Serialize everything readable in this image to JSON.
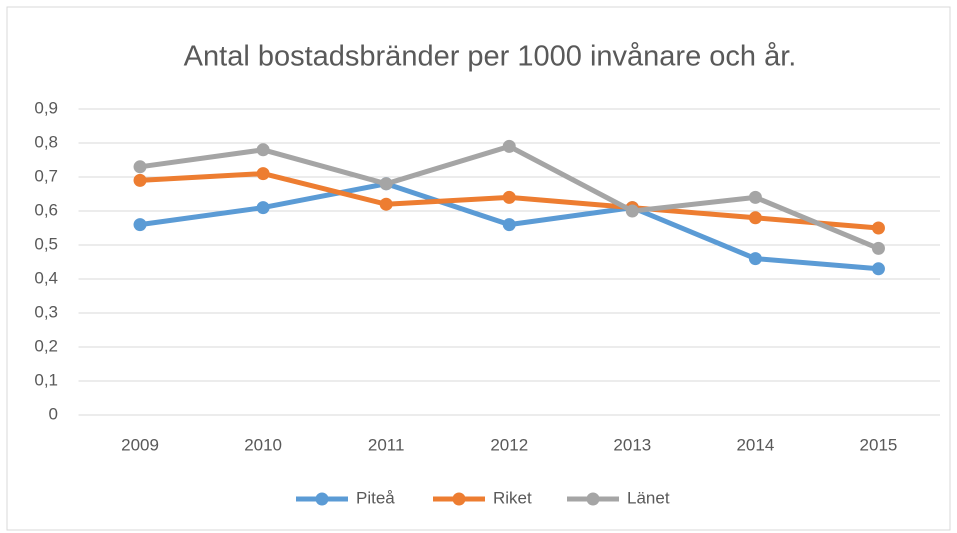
{
  "chart_data": {
    "type": "line",
    "title": "Antal bostadsbränder per 1000 invånare och år.",
    "categories": [
      "2009",
      "2010",
      "2011",
      "2012",
      "2013",
      "2014",
      "2015"
    ],
    "series": [
      {
        "name": "Piteå",
        "color": "#5b9bd5",
        "values": [
          0.56,
          0.61,
          0.68,
          0.56,
          0.61,
          0.46,
          0.43
        ]
      },
      {
        "name": "Riket",
        "color": "#ed7d31",
        "values": [
          0.69,
          0.71,
          0.62,
          0.64,
          0.61,
          0.58,
          0.55
        ]
      },
      {
        "name": "Länet",
        "color": "#a5a5a5",
        "values": [
          0.73,
          0.78,
          0.68,
          0.79,
          0.6,
          0.64,
          0.49
        ]
      }
    ],
    "ylim": [
      0,
      0.9
    ],
    "yticks": [
      0,
      {
        "value": 0.1,
        "label": "0,1"
      },
      {
        "value": 0.2,
        "label": "0,2"
      },
      {
        "value": 0.3,
        "label": "0,3"
      },
      {
        "value": 0.4,
        "label": "0,4"
      },
      {
        "value": 0.5,
        "label": "0,5"
      },
      {
        "value": 0.6,
        "label": "0,6"
      },
      {
        "value": 0.7,
        "label": "0,7"
      },
      {
        "value": 0.8,
        "label": "0,8"
      },
      {
        "value": 0.9,
        "label": "0,9"
      }
    ],
    "grid": true,
    "legend": "bottom"
  }
}
